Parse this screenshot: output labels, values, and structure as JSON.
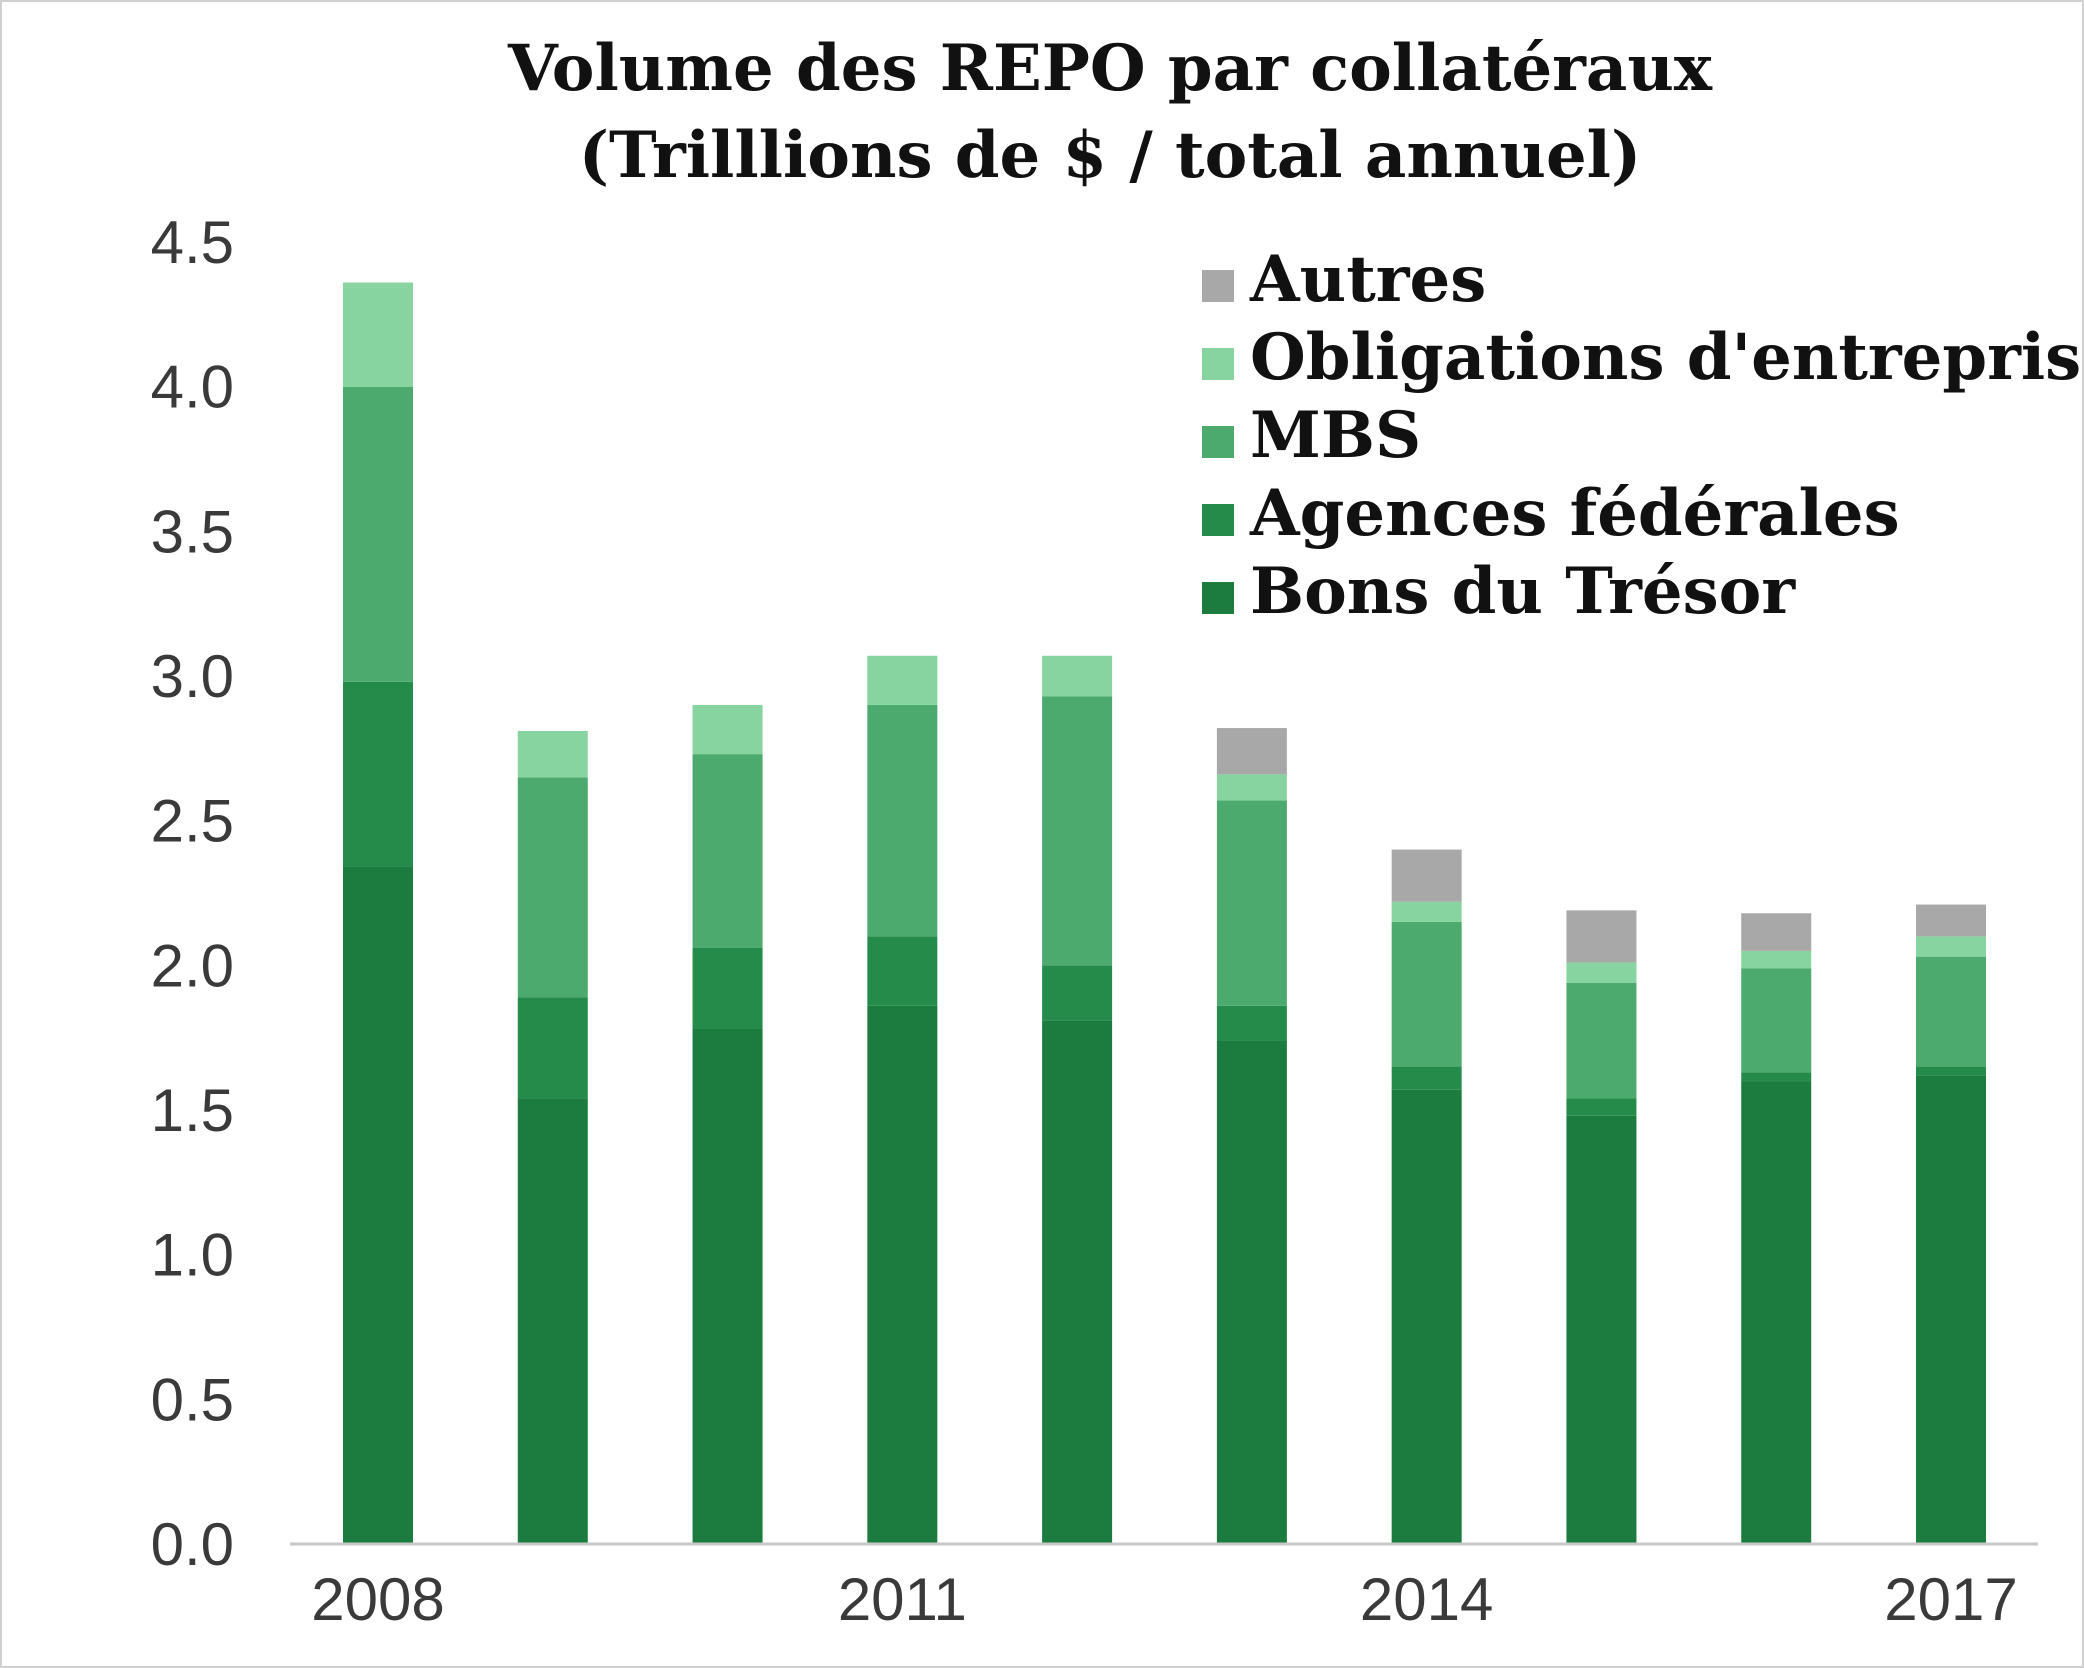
{
  "chart_data": {
    "type": "bar",
    "stacked": true,
    "title": "Volume des REPO par collatéraux",
    "subtitle": "(Trilllions de $ / total annuel)",
    "xlabel": "",
    "ylabel": "",
    "ylim": [
      0,
      4.5
    ],
    "yticks": [
      "0.0",
      "0.5",
      "1.0",
      "1.5",
      "2.0",
      "2.5",
      "3.0",
      "3.5",
      "4.0",
      "4.5"
    ],
    "x": [
      2008,
      2009,
      2010,
      2011,
      2012,
      2013,
      2014,
      2015,
      2016,
      2017
    ],
    "xtick_labels": [
      {
        "year": 2008,
        "label": "2008"
      },
      {
        "year": 2011,
        "label": "2011"
      },
      {
        "year": 2014,
        "label": "2014"
      },
      {
        "year": 2017,
        "label": "2017"
      }
    ],
    "grid": false,
    "legend_position": "top-right",
    "series": [
      {
        "name": "Bons du Trésor",
        "color": "#1c7c3f",
        "values": [
          2.34,
          1.54,
          1.78,
          1.86,
          1.81,
          1.74,
          1.57,
          1.48,
          1.6,
          1.62
        ]
      },
      {
        "name": "Agences fédérales",
        "color": "#258b4a",
        "values": [
          0.64,
          0.35,
          0.28,
          0.24,
          0.19,
          0.12,
          0.08,
          0.06,
          0.03,
          0.03
        ]
      },
      {
        "name": "MBS",
        "color": "#4caa6f",
        "values": [
          1.02,
          0.76,
          0.67,
          0.8,
          0.93,
          0.71,
          0.5,
          0.4,
          0.36,
          0.38
        ]
      },
      {
        "name": "Obligations d'entreprises",
        "color": "#87d4a1",
        "values": [
          0.36,
          0.16,
          0.17,
          0.17,
          0.14,
          0.09,
          0.07,
          0.07,
          0.06,
          0.07
        ]
      },
      {
        "name": "Autres",
        "color": "#a8a8a8",
        "values": [
          0,
          0,
          0,
          0,
          0,
          0.16,
          0.18,
          0.18,
          0.13,
          0.11
        ]
      }
    ]
  }
}
